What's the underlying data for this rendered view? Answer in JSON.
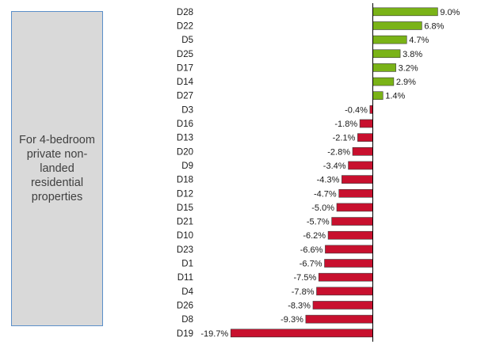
{
  "annotation": {
    "text": "For 4-bedroom private non-landed residential properties"
  },
  "colors": {
    "positive": "#7ab317",
    "negative": "#c8102e",
    "axis": "#000000"
  },
  "chart_data": {
    "type": "bar",
    "orientation": "horizontal",
    "value_format": "percent",
    "categories": [
      "D28",
      "D22",
      "D5",
      "D25",
      "D17",
      "D14",
      "D27",
      "D3",
      "D16",
      "D13",
      "D20",
      "D9",
      "D18",
      "D12",
      "D15",
      "D21",
      "D10",
      "D23",
      "D1",
      "D11",
      "D4",
      "D26",
      "D8",
      "D19"
    ],
    "values": [
      9.0,
      6.8,
      4.7,
      3.8,
      3.2,
      2.9,
      1.4,
      -0.4,
      -1.8,
      -2.1,
      -2.8,
      -3.4,
      -4.3,
      -4.7,
      -5.0,
      -5.7,
      -6.2,
      -6.6,
      -6.7,
      -7.5,
      -7.8,
      -8.3,
      -9.3,
      -19.7
    ],
    "value_labels": [
      "9.0%",
      "6.8%",
      "4.7%",
      "3.8%",
      "3.2%",
      "2.9%",
      "1.4%",
      "-0.4%",
      "-1.8%",
      "-2.1%",
      "-2.8%",
      "-3.4%",
      "-4.3%",
      "-4.7%",
      "-5.0%",
      "-5.7%",
      "-6.2%",
      "-6.6%",
      "-6.7%",
      "-7.5%",
      "-7.8%",
      "-8.3%",
      "-9.3%",
      "-19.7%"
    ],
    "title": "",
    "xlabel": "",
    "ylabel": "",
    "grid": false,
    "legend": "none"
  }
}
